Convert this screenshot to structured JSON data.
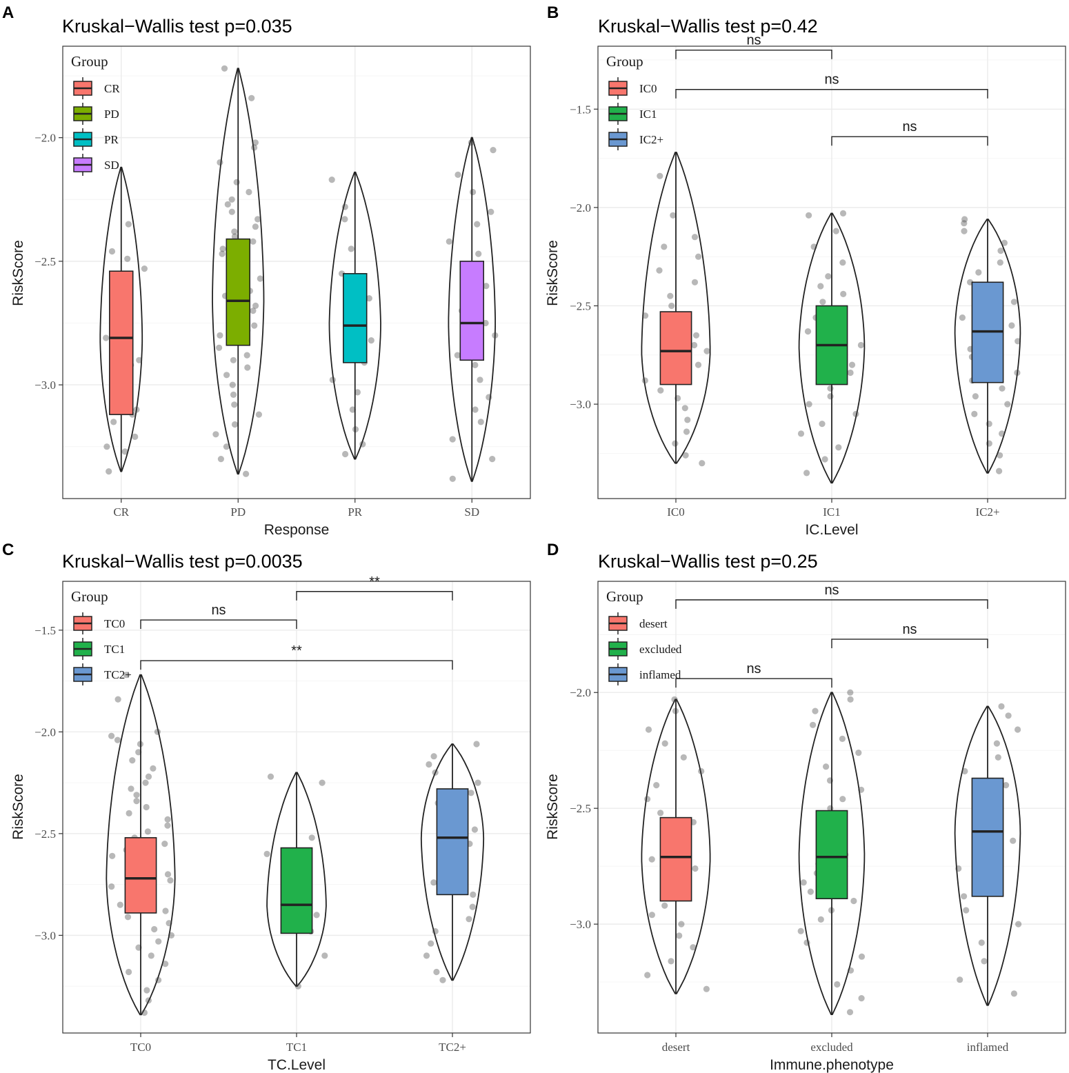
{
  "panels": [
    {
      "letter": "A",
      "title": "Kruskal−Wallis test p=0.035",
      "xlabel": "Response",
      "ylabel": "RiskScore",
      "legend_title": "Group",
      "legend_position": "top-left"
    },
    {
      "letter": "B",
      "title": "Kruskal−Wallis test p=0.42",
      "xlabel": "IC.Level",
      "ylabel": "RiskScore",
      "legend_title": "Group",
      "legend_position": "top-left"
    },
    {
      "letter": "C",
      "title": "Kruskal−Wallis test p=0.0035",
      "xlabel": "TC.Level",
      "ylabel": "RiskScore",
      "legend_title": "Group",
      "legend_position": "top-left"
    },
    {
      "letter": "D",
      "title": "Kruskal−Wallis test p=0.25",
      "xlabel": "Immune.phenotype",
      "ylabel": "RiskScore",
      "legend_title": "Group",
      "legend_position": "top-left"
    }
  ],
  "chart_data": [
    {
      "type": "violin-box-jitter",
      "panel": "A",
      "title": "Kruskal−Wallis test p=0.035",
      "xlabel": "Response",
      "ylabel": "RiskScore",
      "ylim": [
        -3.46,
        -1.63
      ],
      "yticks": [
        -3.0,
        -2.5,
        -2.0
      ],
      "ytick_labels": [
        "−3.0",
        "−2.5",
        "−2.0"
      ],
      "grid": true,
      "groups": [
        {
          "name": "CR",
          "color": "#F8766D",
          "min": -3.35,
          "max": -2.12,
          "q1": -3.12,
          "median": -2.81,
          "q3": -2.54,
          "violin_half_width": 0.18,
          "points": [
            -2.35,
            -2.46,
            -2.49,
            -2.53,
            -2.64,
            -2.67,
            -2.81,
            -2.9,
            -2.92,
            -3.1,
            -3.12,
            -3.15,
            -3.21,
            -3.25,
            -3.27,
            -3.35
          ]
        },
        {
          "name": "PD",
          "color": "#7CAE00",
          "min": -3.36,
          "max": -1.72,
          "q1": -2.84,
          "median": -2.66,
          "q3": -2.41,
          "violin_half_width": 0.22,
          "points": [
            -1.72,
            -1.84,
            -2.02,
            -2.04,
            -2.1,
            -2.18,
            -2.22,
            -2.25,
            -2.27,
            -2.3,
            -2.33,
            -2.36,
            -2.38,
            -2.4,
            -2.42,
            -2.45,
            -2.47,
            -2.5,
            -2.52,
            -2.55,
            -2.57,
            -2.6,
            -2.62,
            -2.64,
            -2.66,
            -2.68,
            -2.7,
            -2.72,
            -2.74,
            -2.76,
            -2.78,
            -2.8,
            -2.82,
            -2.85,
            -2.88,
            -2.9,
            -2.93,
            -2.96,
            -3.0,
            -3.04,
            -3.08,
            -3.12,
            -3.16,
            -3.2,
            -3.25,
            -3.3,
            -3.36
          ]
        },
        {
          "name": "PR",
          "color": "#00BFC4",
          "min": -3.3,
          "max": -2.14,
          "q1": -2.91,
          "median": -2.76,
          "q3": -2.55,
          "violin_half_width": 0.22,
          "points": [
            -2.17,
            -2.28,
            -2.33,
            -2.45,
            -2.55,
            -2.65,
            -2.72,
            -2.78,
            -2.82,
            -2.86,
            -2.91,
            -2.98,
            -3.03,
            -3.1,
            -3.18,
            -3.24,
            -3.28
          ]
        },
        {
          "name": "SD",
          "color": "#C77CFF",
          "min": -3.39,
          "max": -2.0,
          "q1": -2.9,
          "median": -2.75,
          "q3": -2.5,
          "violin_half_width": 0.2,
          "points": [
            -2.02,
            -2.05,
            -2.15,
            -2.22,
            -2.3,
            -2.35,
            -2.42,
            -2.47,
            -2.52,
            -2.56,
            -2.6,
            -2.65,
            -2.7,
            -2.75,
            -2.8,
            -2.85,
            -2.88,
            -2.92,
            -2.98,
            -3.05,
            -3.1,
            -3.15,
            -3.22,
            -3.3,
            -3.38
          ]
        }
      ],
      "comparisons": []
    },
    {
      "type": "violin-box-jitter",
      "panel": "B",
      "title": "Kruskal−Wallis test p=0.42",
      "xlabel": "IC.Level",
      "ylabel": "RiskScore",
      "ylim": [
        -3.48,
        -1.18
      ],
      "yticks": [
        -3.0,
        -2.5,
        -2.0,
        -1.5
      ],
      "ytick_labels": [
        "−3.0",
        "−2.5",
        "−2.0",
        "−1.5"
      ],
      "grid": true,
      "groups": [
        {
          "name": "IC0",
          "color": "#F8766D",
          "min": -3.3,
          "max": -1.72,
          "q1": -2.9,
          "median": -2.73,
          "q3": -2.53,
          "violin_half_width": 0.22,
          "points": [
            -1.84,
            -2.04,
            -2.15,
            -2.2,
            -2.25,
            -2.32,
            -2.38,
            -2.45,
            -2.5,
            -2.55,
            -2.58,
            -2.62,
            -2.65,
            -2.7,
            -2.73,
            -2.76,
            -2.8,
            -2.84,
            -2.88,
            -2.93,
            -2.97,
            -3.02,
            -3.08,
            -3.14,
            -3.2,
            -3.26,
            -3.3
          ]
        },
        {
          "name": "IC1",
          "color": "#21B14B",
          "min": -3.4,
          "max": -2.03,
          "q1": -2.9,
          "median": -2.7,
          "q3": -2.5,
          "violin_half_width": 0.21,
          "points": [
            -2.03,
            -2.04,
            -2.12,
            -2.2,
            -2.28,
            -2.35,
            -2.4,
            -2.44,
            -2.48,
            -2.52,
            -2.56,
            -2.6,
            -2.63,
            -2.66,
            -2.7,
            -2.73,
            -2.76,
            -2.8,
            -2.84,
            -2.88,
            -2.92,
            -2.96,
            -3.0,
            -3.05,
            -3.1,
            -3.15,
            -3.22,
            -3.28,
            -3.35
          ]
        },
        {
          "name": "IC2+",
          "color": "#6A98D1",
          "min": -3.35,
          "max": -2.06,
          "q1": -2.89,
          "median": -2.63,
          "q3": -2.38,
          "violin_half_width": 0.21,
          "points": [
            -2.06,
            -2.08,
            -2.12,
            -2.18,
            -2.22,
            -2.28,
            -2.33,
            -2.38,
            -2.43,
            -2.48,
            -2.52,
            -2.56,
            -2.6,
            -2.64,
            -2.68,
            -2.72,
            -2.76,
            -2.8,
            -2.84,
            -2.88,
            -2.92,
            -2.96,
            -3.0,
            -3.05,
            -3.1,
            -3.15,
            -3.2,
            -3.26,
            -3.34
          ]
        }
      ],
      "comparisons": [
        {
          "from": "IC0",
          "to": "IC1",
          "label": "ns",
          "y": -1.2
        },
        {
          "from": "IC0",
          "to": "IC2+",
          "label": "ns",
          "y": -1.4
        },
        {
          "from": "IC1",
          "to": "IC2+",
          "label": "ns",
          "y": -1.64
        }
      ]
    },
    {
      "type": "violin-box-jitter",
      "panel": "C",
      "title": "Kruskal−Wallis test p=0.0035",
      "xlabel": "TC.Level",
      "ylabel": "RiskScore",
      "ylim": [
        -3.48,
        -1.26
      ],
      "yticks": [
        -3.0,
        -2.5,
        -2.0,
        -1.5
      ],
      "ytick_labels": [
        "−3.0",
        "−2.5",
        "−2.0",
        "−1.5"
      ],
      "grid": true,
      "groups": [
        {
          "name": "TC0",
          "color": "#F8766D",
          "min": -3.39,
          "max": -1.72,
          "q1": -2.89,
          "median": -2.72,
          "q3": -2.52,
          "violin_half_width": 0.22,
          "points": [
            -1.72,
            -1.84,
            -2.0,
            -2.02,
            -2.04,
            -2.06,
            -2.1,
            -2.14,
            -2.18,
            -2.22,
            -2.25,
            -2.28,
            -2.31,
            -2.34,
            -2.37,
            -2.4,
            -2.43,
            -2.46,
            -2.49,
            -2.52,
            -2.55,
            -2.58,
            -2.61,
            -2.64,
            -2.67,
            -2.7,
            -2.73,
            -2.76,
            -2.79,
            -2.82,
            -2.85,
            -2.88,
            -2.91,
            -2.94,
            -2.97,
            -3.0,
            -3.03,
            -3.06,
            -3.1,
            -3.14,
            -3.18,
            -3.22,
            -3.27,
            -3.32,
            -3.38
          ]
        },
        {
          "name": "TC1",
          "color": "#21B14B",
          "min": -3.25,
          "max": -2.2,
          "q1": -2.99,
          "median": -2.85,
          "q3": -2.57,
          "violin_half_width": 0.19,
          "points": [
            -2.22,
            -2.25,
            -2.52,
            -2.6,
            -2.78,
            -2.85,
            -2.9,
            -2.98,
            -3.1,
            -3.25
          ]
        },
        {
          "name": "TC2+",
          "color": "#6A98D1",
          "min": -3.22,
          "max": -2.06,
          "q1": -2.8,
          "median": -2.52,
          "q3": -2.28,
          "violin_half_width": 0.2,
          "points": [
            -2.06,
            -2.12,
            -2.16,
            -2.2,
            -2.25,
            -2.3,
            -2.35,
            -2.42,
            -2.48,
            -2.55,
            -2.62,
            -2.68,
            -2.74,
            -2.8,
            -2.86,
            -2.92,
            -2.98,
            -3.04,
            -3.1,
            -3.18,
            -3.22
          ]
        }
      ],
      "comparisons": [
        {
          "from": "TC1",
          "to": "TC2+",
          "label": "**",
          "y": -1.31
        },
        {
          "from": "TC0",
          "to": "TC1",
          "label": "ns",
          "y": -1.45
        },
        {
          "from": "TC0",
          "to": "TC2+",
          "label": "**",
          "y": -1.65
        }
      ]
    },
    {
      "type": "violin-box-jitter",
      "panel": "D",
      "title": "Kruskal−Wallis test p=0.25",
      "xlabel": "Immune.phenotype",
      "ylabel": "RiskScore",
      "ylim": [
        -3.47,
        -1.52
      ],
      "yticks": [
        -3.0,
        -2.5,
        -2.0
      ],
      "ytick_labels": [
        "−3.0",
        "−2.5",
        "−2.0"
      ],
      "grid": true,
      "groups": [
        {
          "name": "desert",
          "color": "#F8766D",
          "min": -3.3,
          "max": -2.03,
          "q1": -2.9,
          "median": -2.71,
          "q3": -2.54,
          "violin_half_width": 0.22,
          "points": [
            -2.03,
            -2.08,
            -2.16,
            -2.22,
            -2.28,
            -2.34,
            -2.4,
            -2.46,
            -2.52,
            -2.56,
            -2.6,
            -2.64,
            -2.68,
            -2.72,
            -2.76,
            -2.8,
            -2.84,
            -2.88,
            -2.92,
            -2.96,
            -3.0,
            -3.05,
            -3.1,
            -3.16,
            -3.22,
            -3.28
          ]
        },
        {
          "name": "excluded",
          "color": "#21B14B",
          "min": -3.39,
          "max": -2.0,
          "q1": -2.89,
          "median": -2.71,
          "q3": -2.51,
          "violin_half_width": 0.21,
          "points": [
            -2.0,
            -2.03,
            -2.08,
            -2.14,
            -2.2,
            -2.26,
            -2.32,
            -2.38,
            -2.42,
            -2.46,
            -2.5,
            -2.54,
            -2.58,
            -2.62,
            -2.66,
            -2.7,
            -2.74,
            -2.78,
            -2.82,
            -2.86,
            -2.9,
            -2.94,
            -2.98,
            -3.03,
            -3.08,
            -3.14,
            -3.2,
            -3.26,
            -3.32,
            -3.38
          ]
        },
        {
          "name": "inflamed",
          "color": "#6A98D1",
          "min": -3.35,
          "max": -2.06,
          "q1": -2.88,
          "median": -2.6,
          "q3": -2.37,
          "violin_half_width": 0.21,
          "points": [
            -2.06,
            -2.1,
            -2.16,
            -2.22,
            -2.28,
            -2.34,
            -2.4,
            -2.46,
            -2.52,
            -2.58,
            -2.64,
            -2.7,
            -2.76,
            -2.82,
            -2.88,
            -2.94,
            -3.0,
            -3.08,
            -3.16,
            -3.24,
            -3.3
          ]
        }
      ],
      "comparisons": [
        {
          "from": "desert",
          "to": "inflamed",
          "label": "ns",
          "y": -1.6
        },
        {
          "from": "excluded",
          "to": "inflamed",
          "label": "ns",
          "y": -1.77
        },
        {
          "from": "desert",
          "to": "excluded",
          "label": "ns",
          "y": -1.94
        }
      ]
    }
  ]
}
